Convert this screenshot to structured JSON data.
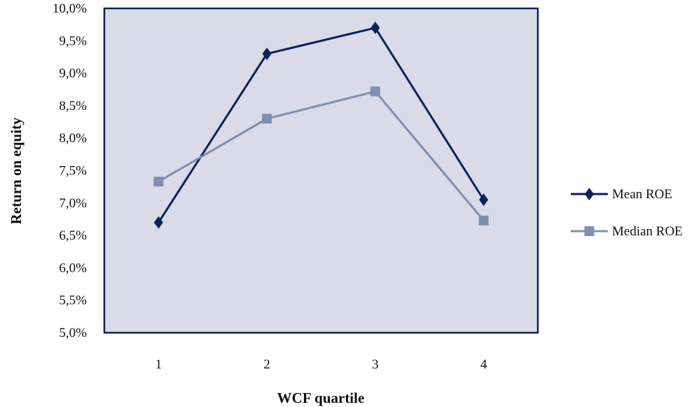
{
  "chart_data": {
    "type": "line",
    "xlabel": "WCF quartile",
    "ylabel": "Return on equity",
    "categories": [
      "1",
      "2",
      "3",
      "4"
    ],
    "ylim": [
      5.0,
      10.0
    ],
    "ytick_step": 0.5,
    "y_tick_labels": [
      "5,0%",
      "5,5%",
      "6,0%",
      "6,5%",
      "7,0%",
      "7,5%",
      "8,0%",
      "8,5%",
      "9,0%",
      "9,5%",
      "10,0%"
    ],
    "grid": false,
    "legend_position": "right",
    "plot_background": "#d9dce8",
    "plot_border_color": "#0a2258",
    "series": [
      {
        "name": "Mean ROE",
        "values": [
          6.7,
          9.3,
          9.7,
          7.05
        ],
        "color": "#0a2258",
        "marker": "diamond"
      },
      {
        "name": "Median ROE",
        "values": [
          7.33,
          8.3,
          8.72,
          6.73
        ],
        "color": "#7f8fb2",
        "marker": "square"
      }
    ]
  }
}
